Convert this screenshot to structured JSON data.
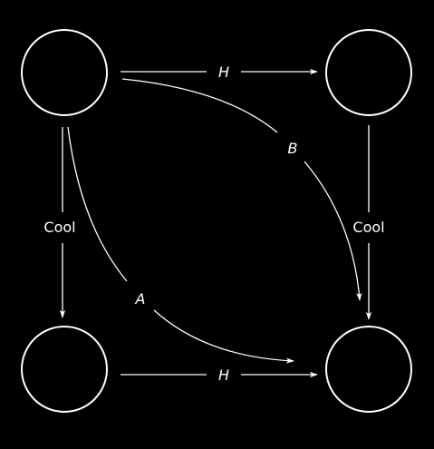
{
  "colors": {
    "background": "#000000",
    "stroke": "#ffffff",
    "text": "#ffffff"
  },
  "nodes": [
    {
      "id": "top-left",
      "label": ""
    },
    {
      "id": "top-right",
      "label": ""
    },
    {
      "id": "bottom-left",
      "label": ""
    },
    {
      "id": "bottom-right",
      "label": ""
    }
  ],
  "edges": {
    "top": {
      "from": "top-left",
      "to": "top-right",
      "label": "H"
    },
    "bottom": {
      "from": "bottom-left",
      "to": "bottom-right",
      "label": "H"
    },
    "left": {
      "from": "top-left",
      "to": "bottom-left",
      "label": "Cool"
    },
    "right": {
      "from": "top-right",
      "to": "bottom-right",
      "label": "Cool"
    },
    "curve_b": {
      "from": "top-left",
      "to": "bottom-right",
      "label": "B"
    },
    "curve_a": {
      "from": "top-left",
      "to": "bottom-right",
      "label": "A"
    }
  }
}
